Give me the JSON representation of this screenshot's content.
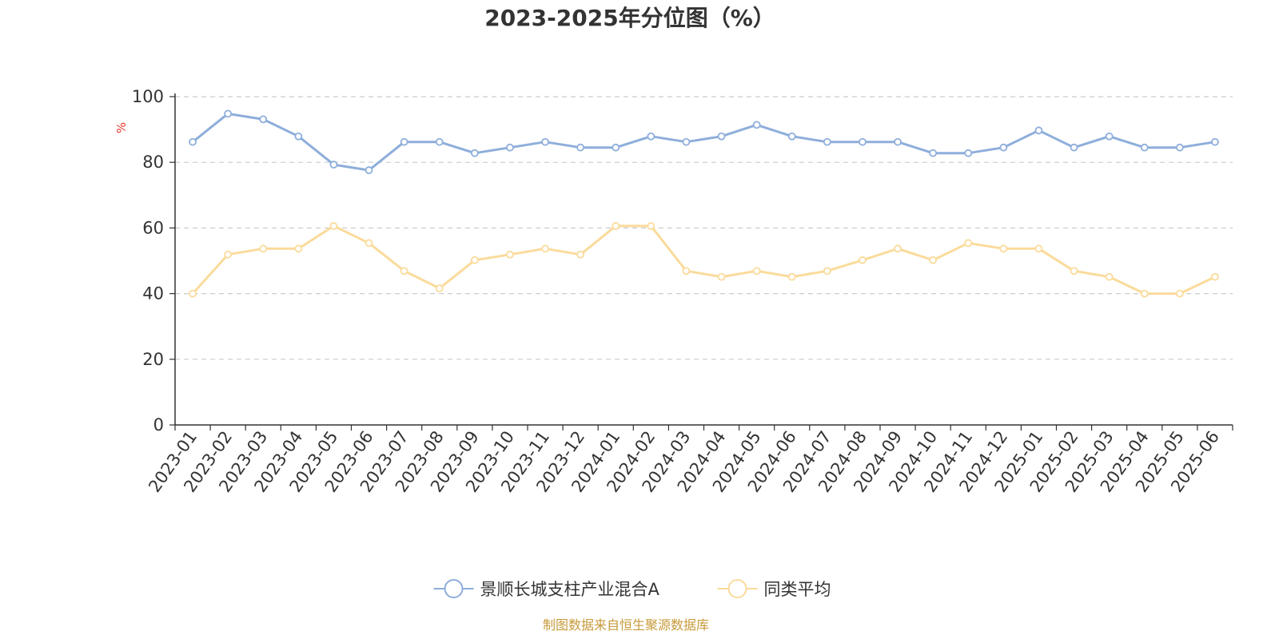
{
  "chart_data": {
    "type": "line",
    "title": "2023-2025年分位图（%）",
    "ylabel": "%",
    "xlabel": "",
    "ylim": [
      0,
      100
    ],
    "yticks": [
      0,
      20,
      40,
      60,
      80,
      100
    ],
    "grid": true,
    "legend_position": "bottom",
    "categories": [
      "2023-01",
      "2023-02",
      "2023-03",
      "2023-04",
      "2023-05",
      "2023-06",
      "2023-07",
      "2023-08",
      "2023-09",
      "2023-10",
      "2023-11",
      "2023-12",
      "2024-01",
      "2024-02",
      "2024-03",
      "2024-04",
      "2024-05",
      "2024-06",
      "2024-07",
      "2024-08",
      "2024-09",
      "2024-10",
      "2024-11",
      "2024-12",
      "2025-01",
      "2025-02",
      "2025-03",
      "2025-04",
      "2025-05",
      "2025-06"
    ],
    "series": [
      {
        "name": "景顺长城支柱产业混合A",
        "color": "#8eaedb",
        "values": [
          86.2,
          94.8,
          93.1,
          87.9,
          79.3,
          77.6,
          86.2,
          86.2,
          82.8,
          84.5,
          86.2,
          84.5,
          84.5,
          87.9,
          86.2,
          87.9,
          91.4,
          87.9,
          86.2,
          86.2,
          86.2,
          82.8,
          82.8,
          84.5,
          89.7,
          84.5,
          87.9,
          84.5,
          84.5,
          86.2
        ]
      },
      {
        "name": "同类平均",
        "color": "#fadb9b",
        "values": [
          40.0,
          51.9,
          53.7,
          53.7,
          60.6,
          55.4,
          46.9,
          41.6,
          50.2,
          51.9,
          53.7,
          51.9,
          60.6,
          60.6,
          46.9,
          45.1,
          46.9,
          45.1,
          46.9,
          50.2,
          53.7,
          50.2,
          55.4,
          53.7,
          53.7,
          46.9,
          45.1,
          40.0,
          40.0,
          45.1
        ]
      }
    ]
  },
  "unit_label": "%",
  "unit_color": "#e8392f",
  "source_text": "制图数据来自恒生聚源数据库",
  "source_color": "#c79a3a",
  "grid_color": "#cccccc",
  "axis_color": "#333333"
}
